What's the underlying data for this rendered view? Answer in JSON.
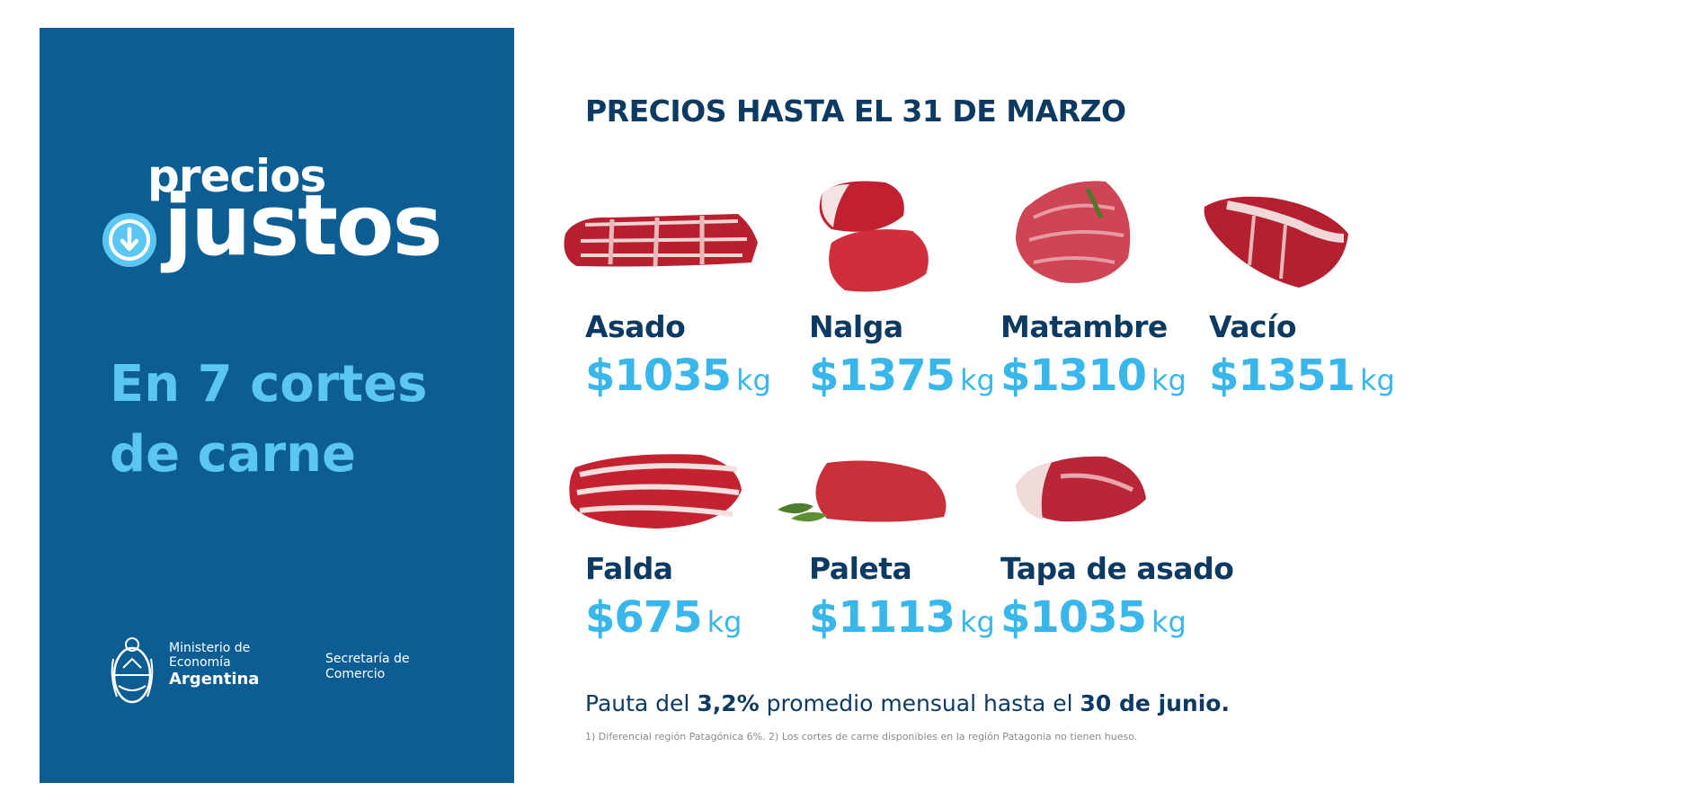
{
  "brand": {
    "logo_line1": "precios",
    "logo_line2": "justos",
    "headline_line1": "En 7 cortes",
    "headline_line2": "de carne"
  },
  "government": {
    "ministry_line1": "Ministerio de",
    "ministry_line2": "Economía",
    "ministry_line3": "Argentina",
    "secretaria_line1": "Secretaría de",
    "secretaria_line2": "Comercio"
  },
  "title": "PRECIOS HASTA EL 31 DE MARZO",
  "cuts": [
    {
      "name": "Asado",
      "price": "$1035",
      "unit": "kg",
      "image": "asado-ribs-image"
    },
    {
      "name": "Nalga",
      "price": "$1375",
      "unit": "kg",
      "image": "nalga-image"
    },
    {
      "name": "Matambre",
      "price": "$1310",
      "unit": "kg",
      "image": "matambre-image"
    },
    {
      "name": "Vacío",
      "price": "$1351",
      "unit": "kg",
      "image": "vacio-image"
    },
    {
      "name": "Falda",
      "price": "$675",
      "unit": "kg",
      "image": "falda-image"
    },
    {
      "name": "Paleta",
      "price": "$1113",
      "unit": "kg",
      "image": "paleta-image"
    },
    {
      "name": "Tapa de asado",
      "price": "$1035",
      "unit": "kg",
      "image": "tapa-de-asado-image"
    }
  ],
  "footer": {
    "pauta_prefix": "Pauta del ",
    "pauta_pct": "3,2%",
    "pauta_middle": " promedio mensual hasta el ",
    "pauta_date": "30 de junio.",
    "note": "1) Diferencial región Patagónica 6%. 2) Los cortes de carne disponibles en la región Patagonia no tienen hueso."
  },
  "colors": {
    "panel_blue": "#0b5d93",
    "accent_light_blue": "#39b6ea",
    "dark_navy": "#0c3a62",
    "meat_red": "#c8283a"
  }
}
